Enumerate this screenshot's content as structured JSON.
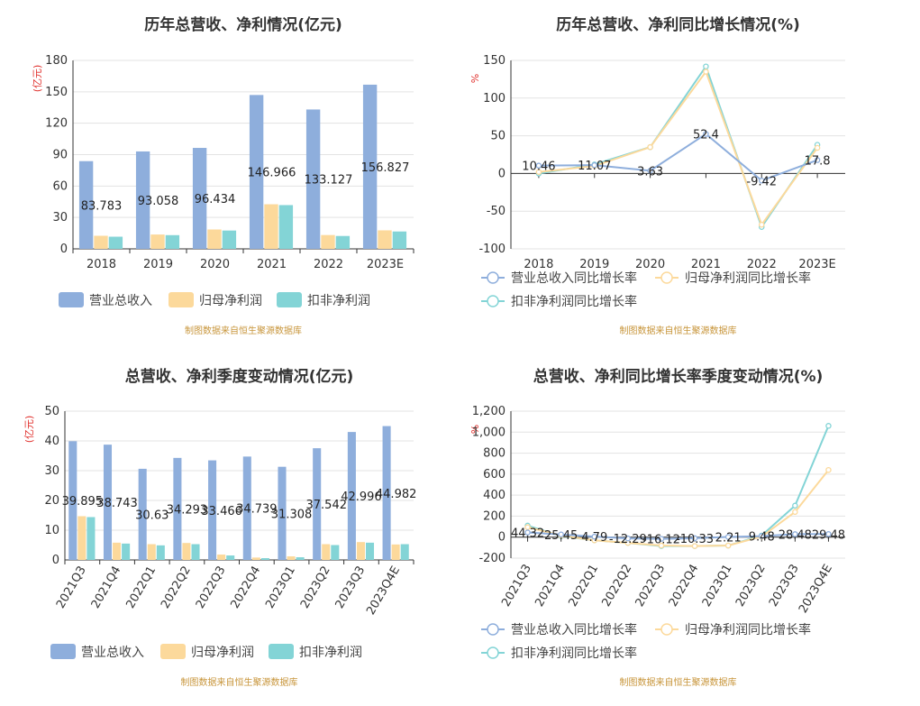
{
  "colors": {
    "revenue": "#8eaedc",
    "net_profit": "#fcd99b",
    "deducted_profit": "#83d4d6",
    "unit": "#e0302c",
    "source": "#c8963c"
  },
  "chart_data": [
    {
      "type": "bar",
      "title": "历年总营收、净利情况(亿元)",
      "ylabel": "(亿元)",
      "ylim": [
        0,
        180
      ],
      "yticks": [
        0,
        30,
        60,
        90,
        120,
        150,
        180
      ],
      "categories": [
        "2018",
        "2019",
        "2020",
        "2021",
        "2022",
        "2023E"
      ],
      "series": [
        {
          "name": "营业总收入",
          "values": [
            83.783,
            93.058,
            96.434,
            146.966,
            133.127,
            156.827
          ],
          "labels": [
            "83.783",
            "93.058",
            "96.434",
            "146.966",
            "133.127",
            "156.827"
          ]
        },
        {
          "name": "归母净利润",
          "values": [
            12.5,
            13.7,
            18.5,
            42.6,
            13.2,
            17.7
          ]
        },
        {
          "name": "扣非净利润",
          "values": [
            11.6,
            13.1,
            17.5,
            41.8,
            12.3,
            16.6
          ]
        }
      ],
      "source": "制图数据来自恒生聚源数据库",
      "legend_position": "bottom"
    },
    {
      "type": "line",
      "title": "历年总营收、净利同比增长情况(%)",
      "ylabel": "%",
      "ylim": [
        -100,
        150
      ],
      "yticks": [
        -100,
        -50,
        0,
        50,
        100,
        150
      ],
      "categories": [
        "2018",
        "2019",
        "2020",
        "2021",
        "2022",
        "2023E"
      ],
      "series": [
        {
          "name": "营业总收入同比增长率",
          "values": [
            10.46,
            11.07,
            3.63,
            52.4,
            -9.42,
            17.8
          ],
          "labels": [
            "10.46",
            "11.07",
            "3.63",
            "52.4",
            "-9.42",
            "17.8"
          ]
        },
        {
          "name": "归母净利润同比增长率",
          "values": [
            2,
            10,
            35,
            135,
            -68,
            34
          ]
        },
        {
          "name": "扣非净利润同比增长率",
          "values": [
            0,
            12,
            35,
            142,
            -71,
            38
          ]
        }
      ],
      "source": "制图数据来自恒生聚源数据库",
      "legend_position": "bottom"
    },
    {
      "type": "bar",
      "title": "总营收、净利季度变动情况(亿元)",
      "ylabel": "(亿元)",
      "ylim": [
        0,
        50
      ],
      "yticks": [
        0,
        10,
        20,
        30,
        40,
        50
      ],
      "categories": [
        "2021Q3",
        "2021Q4",
        "2022Q1",
        "2022Q2",
        "2022Q3",
        "2022Q4",
        "2023Q1",
        "2023Q2",
        "2023Q3",
        "2023Q4E"
      ],
      "series": [
        {
          "name": "营业总收入",
          "values": [
            39.895,
            38.743,
            30.63,
            34.293,
            33.466,
            34.739,
            31.308,
            37.542,
            42.996,
            44.982
          ],
          "labels": [
            "39.895",
            "38.743",
            "30.63",
            "34.293",
            "33.466",
            "34.739",
            "31.308",
            "37.542",
            "42.996",
            "44.982"
          ]
        },
        {
          "name": "归母净利润",
          "values": [
            14.7,
            5.8,
            5.3,
            5.7,
            1.8,
            0.8,
            1.2,
            5.3,
            6.0,
            5.2
          ]
        },
        {
          "name": "扣非净利润",
          "values": [
            14.4,
            5.5,
            4.9,
            5.3,
            1.5,
            0.6,
            0.9,
            5.0,
            5.8,
            5.3
          ]
        }
      ],
      "source": "制图数据来自恒生聚源数据库",
      "legend_position": "bottom"
    },
    {
      "type": "line",
      "title": "总营收、净利同比增长率季度变动情况(%)",
      "ylabel": "%",
      "ylim": [
        -200,
        1200
      ],
      "yticks": [
        -200,
        0,
        200,
        400,
        600,
        800,
        1000,
        1200
      ],
      "ytick_labels": [
        "-200",
        "0",
        "200",
        "400",
        "600",
        "800",
        "1,000",
        "1,200"
      ],
      "categories": [
        "2021Q3",
        "2021Q4",
        "2022Q1",
        "2022Q2",
        "2022Q3",
        "2022Q4",
        "2023Q1",
        "2023Q2",
        "2023Q3",
        "2023Q4E"
      ],
      "series": [
        {
          "name": "营业总收入同比增长率",
          "values": [
            44.32,
            25.45,
            4.79,
            -12.29,
            -16.12,
            -10.33,
            2.21,
            9.48,
            28.48,
            29.48
          ],
          "labels": [
            "44.32",
            "25.45",
            "4.79",
            "-12.29",
            "-16.12",
            "-10.33",
            "2.21",
            "9.48",
            "28.48",
            "29.48"
          ]
        },
        {
          "name": "归母净利润同比增长率",
          "values": [
            95,
            15,
            -30,
            -55,
            -80,
            -85,
            -80,
            5,
            240,
            640
          ]
        },
        {
          "name": "扣非净利润同比增长率",
          "values": [
            110,
            10,
            -30,
            -55,
            -85,
            -85,
            -80,
            15,
            300,
            1060
          ]
        }
      ],
      "source": "制图数据来自恒生聚源数据库",
      "legend_position": "bottom"
    }
  ]
}
